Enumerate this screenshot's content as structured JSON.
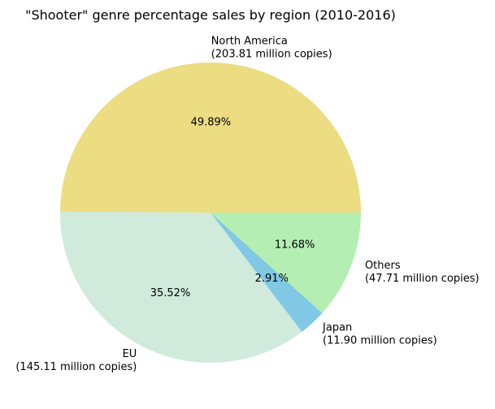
{
  "chart_data": {
    "type": "pie",
    "title": "\"Shooter\" genre percentage sales by region (2010-2016)",
    "start_angle_deg": 0,
    "direction": "counterclockwise",
    "slices": [
      {
        "name": "North America",
        "value": 203.81,
        "pct_label": "49.89%",
        "label_lines": [
          "North America",
          "(203.81 million copies)"
        ],
        "color": "#ecdc82"
      },
      {
        "name": "EU",
        "value": 145.11,
        "pct_label": "35.52%",
        "label_lines": [
          "EU",
          "(145.11 million copies)"
        ],
        "color": "#d0eadb"
      },
      {
        "name": "Japan",
        "value": 11.9,
        "pct_label": "2.91%",
        "label_lines": [
          "Japan",
          "(11.90 million copies)"
        ],
        "color": "#80c8e3"
      },
      {
        "name": "Others",
        "value": 47.71,
        "pct_label": "11.68%",
        "label_lines": [
          "Others",
          "(47.71 million copies)"
        ],
        "color": "#b4eeb2"
      }
    ]
  }
}
